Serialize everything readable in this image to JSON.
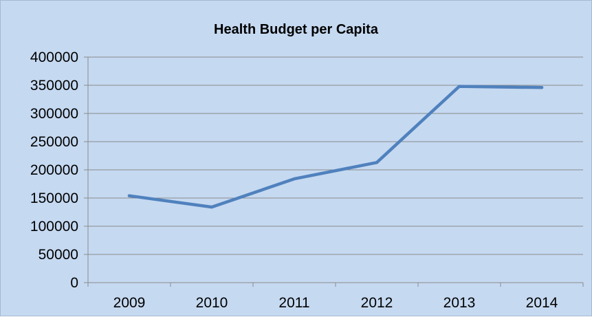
{
  "chart_data": {
    "type": "line",
    "title": "Health Budget per Capita",
    "xlabel": "",
    "ylabel": "",
    "categories": [
      "2009",
      "2010",
      "2011",
      "2012",
      "2013",
      "2014"
    ],
    "series": [
      {
        "values": [
          154000,
          134000,
          184000,
          213000,
          348000,
          346000
        ]
      }
    ],
    "ylim": [
      0,
      400000
    ],
    "yticks": [
      "0",
      "50000",
      "100000",
      "150000",
      "200000",
      "250000",
      "300000",
      "350000",
      "400000"
    ],
    "grid": true,
    "legend": "none",
    "colors": {
      "background": "#c5d9f1",
      "line": "#4f81bd",
      "grid": "#8c8c8c"
    }
  }
}
